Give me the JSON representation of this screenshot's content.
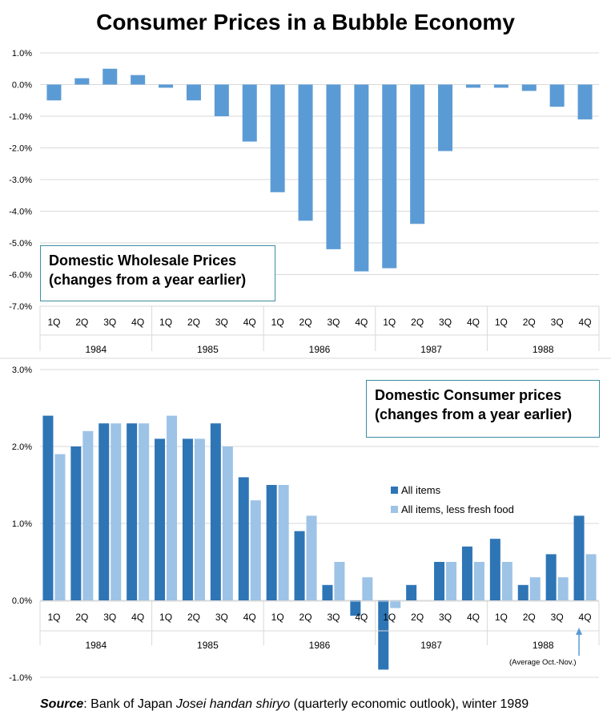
{
  "title": "Consumer Prices in a Bubble Economy",
  "colors": {
    "dark_blue": "#2e75b6",
    "light_blue": "#9dc3e6",
    "mid_blue": "#5b9bd5",
    "grid": "#d9d9d9",
    "box_border": "#3c8ea0"
  },
  "chart_data": [
    {
      "type": "bar",
      "title": "Domestic Wholesale Prices (changes from a year earlier)",
      "title_lines": [
        "Domestic Wholesale Prices",
        "(changes from a year earlier)"
      ],
      "quarters": [
        "1Q",
        "2Q",
        "3Q",
        "4Q",
        "1Q",
        "2Q",
        "3Q",
        "4Q",
        "1Q",
        "2Q",
        "3Q",
        "4Q",
        "1Q",
        "2Q",
        "3Q",
        "4Q",
        "1Q",
        "2Q",
        "3Q",
        "4Q"
      ],
      "years": [
        "1984",
        "1985",
        "1986",
        "1987",
        "1988"
      ],
      "values": [
        -0.5,
        0.2,
        0.5,
        0.3,
        -0.1,
        -0.5,
        -1.0,
        -1.8,
        -3.4,
        -4.3,
        -5.2,
        -5.9,
        -5.8,
        -4.4,
        -2.1,
        -0.1,
        -0.1,
        -0.2,
        -0.7,
        -1.1
      ],
      "ylim": [
        -7,
        1
      ],
      "y_ticks": [
        "1.0%",
        "0.0%",
        "-1.0%",
        "-2.0%",
        "-3.0%",
        "-4.0%",
        "-5.0%",
        "-6.0%",
        "-7.0%"
      ],
      "grid": true
    },
    {
      "type": "bar",
      "title": "Domestic Consumer prices (changes from a year earlier)",
      "title_lines": [
        "Domestic Consumer prices",
        "(changes from a year earlier)"
      ],
      "quarters": [
        "1Q",
        "2Q",
        "3Q",
        "4Q",
        "1Q",
        "2Q",
        "3Q",
        "4Q",
        "1Q",
        "2Q",
        "3Q",
        "4Q",
        "1Q",
        "2Q",
        "3Q",
        "4Q",
        "1Q",
        "2Q",
        "3Q",
        "4Q"
      ],
      "years": [
        "1984",
        "1985",
        "1986",
        "1987",
        "1988"
      ],
      "series": [
        {
          "name": "All items",
          "values": [
            2.4,
            2.0,
            2.3,
            2.3,
            2.1,
            2.1,
            2.3,
            1.6,
            1.5,
            0.9,
            0.2,
            -0.2,
            -0.9,
            0.2,
            0.5,
            0.7,
            0.8,
            0.2,
            0.6,
            1.1
          ]
        },
        {
          "name": "All items, less fresh food",
          "values": [
            1.9,
            2.2,
            2.3,
            2.3,
            2.4,
            2.1,
            2.0,
            1.3,
            1.5,
            1.1,
            0.5,
            0.3,
            -0.1,
            0.0,
            0.5,
            0.5,
            0.5,
            0.3,
            0.3,
            0.6
          ]
        }
      ],
      "ylim": [
        -1,
        3
      ],
      "y_ticks": [
        "3.0%",
        "2.0%",
        "1.0%",
        "0.0%",
        "-1.0%"
      ],
      "legend": "right",
      "grid": true,
      "annotation": "(Average Oct.-Nov.)"
    }
  ],
  "source": {
    "label": "Source",
    "text_before": ": Bank of Japan ",
    "italic": "Josei handan shiryo",
    "text_after": " (quarterly economic outlook), winter 1989"
  }
}
